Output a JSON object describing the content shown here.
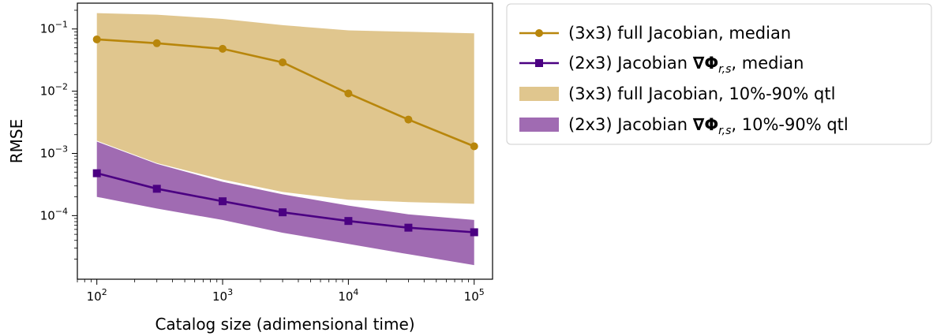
{
  "chart_data": {
    "type": "line",
    "title": "",
    "xlabel": "Catalog size (adimensional time)",
    "ylabel": "RMSE",
    "xscale": "log",
    "yscale": "log",
    "xlim": [
      70,
      140000
    ],
    "ylim": [
      9.5e-06,
      0.26
    ],
    "grid": false,
    "legend_position": "outside-right",
    "x_ticks": [
      {
        "value": 100,
        "base": "10",
        "exp": "2"
      },
      {
        "value": 1000,
        "base": "10",
        "exp": "3"
      },
      {
        "value": 10000,
        "base": "10",
        "exp": "4"
      },
      {
        "value": 100000,
        "base": "10",
        "exp": "5"
      }
    ],
    "y_ticks": [
      {
        "value": 0.0001,
        "base": "10",
        "exp": "−4"
      },
      {
        "value": 0.001,
        "base": "10",
        "exp": "−3"
      },
      {
        "value": 0.01,
        "base": "10",
        "exp": "−2"
      },
      {
        "value": 0.1,
        "base": "10",
        "exp": "−1"
      }
    ],
    "x": [
      100,
      300,
      1000,
      3000,
      10000,
      30000,
      100000
    ],
    "series": [
      {
        "name": "(3x3) full Jacobian, median",
        "kind": "line",
        "marker": "circle",
        "color": "#b8860b",
        "values": [
          0.068,
          0.059,
          0.048,
          0.029,
          0.0092,
          0.0035,
          0.0013
        ]
      },
      {
        "name": "(2x3) Jacobian ∇Φr,s, median",
        "kind": "line",
        "marker": "square",
        "color": "#4b0082",
        "values": [
          0.00048,
          0.00027,
          0.00017,
          0.000113,
          8.2e-05,
          6.4e-05,
          5.4e-05
        ]
      },
      {
        "name": "(3x3) full Jacobian, 10%-90% qtl",
        "kind": "band",
        "color": "#d4b062",
        "lower": [
          0.0016,
          0.0007,
          0.00038,
          0.00024,
          0.00018,
          0.000165,
          0.000155
        ],
        "upper": [
          0.18,
          0.17,
          0.145,
          0.115,
          0.095,
          0.09,
          0.085
        ]
      },
      {
        "name": "(2x3) Jacobian ∇Φr,s, 10%-90% qtl",
        "kind": "band",
        "color": "#7b3294",
        "lower": [
          0.0002,
          0.00013,
          8.5e-05,
          5.3e-05,
          3.5e-05,
          2.4e-05,
          1.6e-05
        ],
        "upper": [
          0.00155,
          0.00068,
          0.00035,
          0.00022,
          0.000145,
          0.000105,
          8.5e-05
        ]
      }
    ]
  }
}
